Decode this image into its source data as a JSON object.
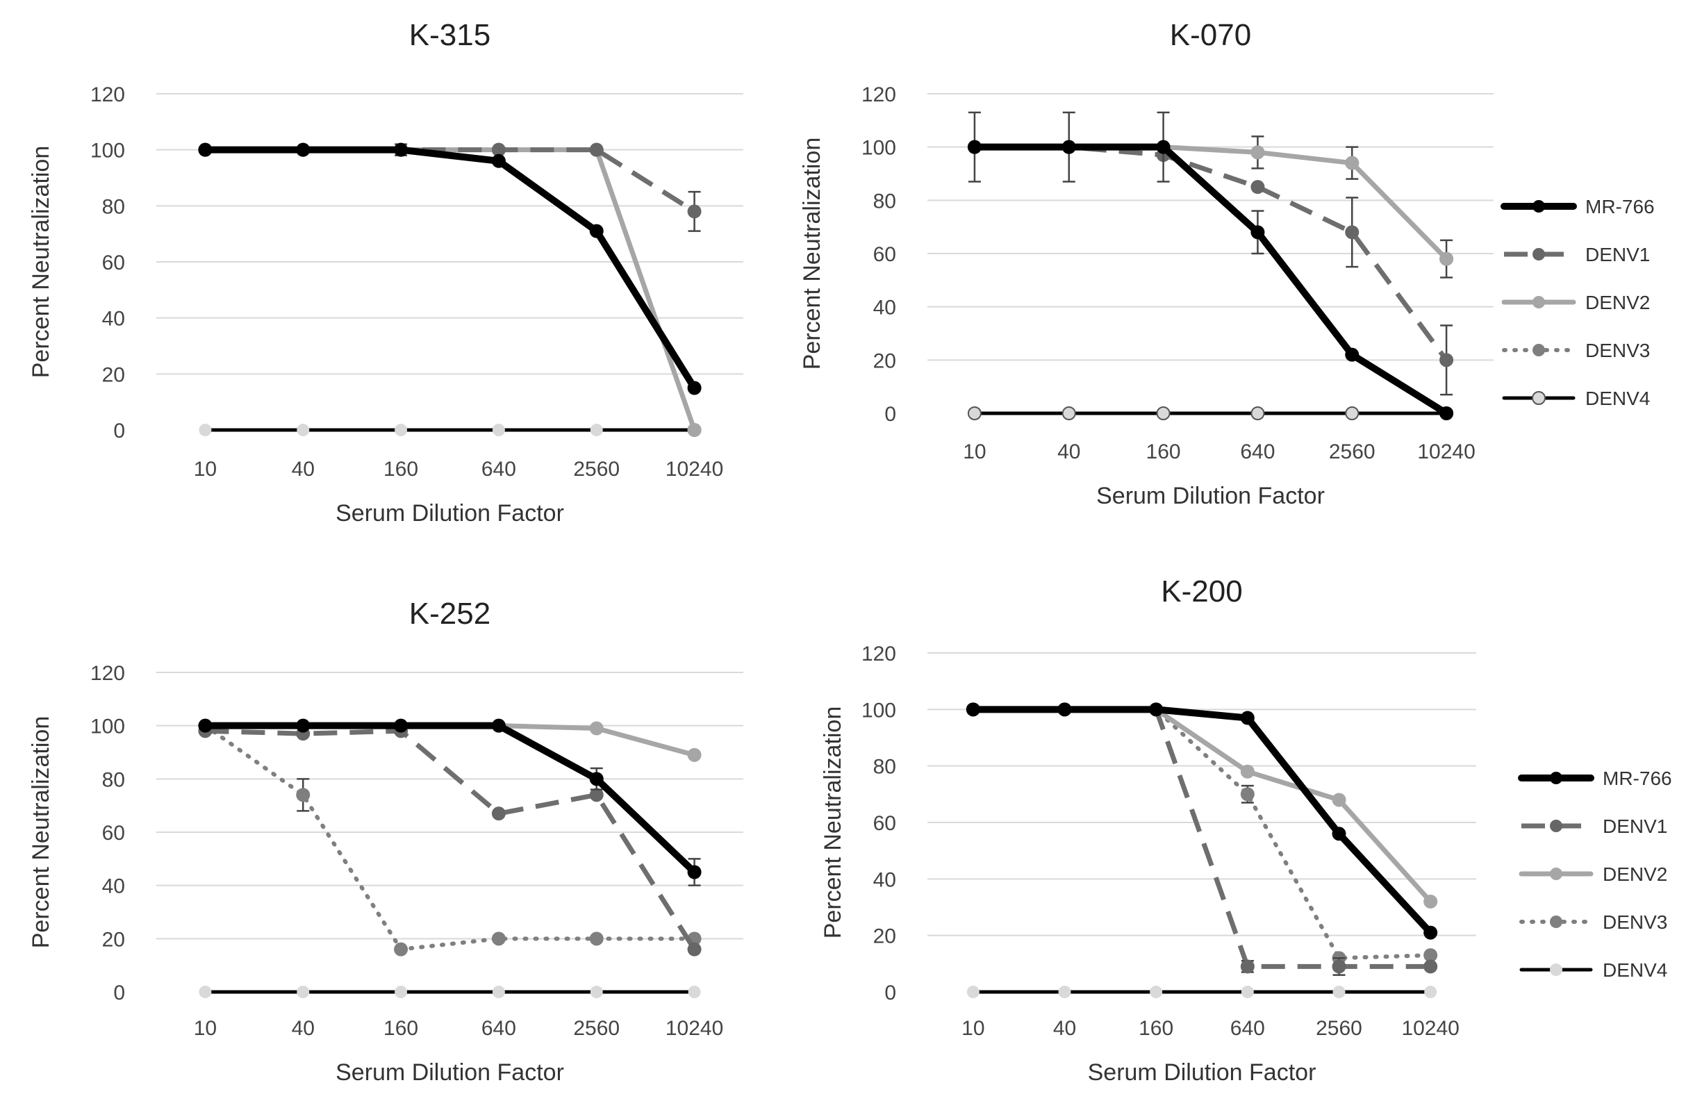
{
  "chart_data": [
    {
      "type": "line",
      "title": "K-315",
      "xlabel": "Serum  Dilution Factor",
      "ylabel": "Percent Neutralization",
      "categories": [
        "10",
        "40",
        "160",
        "640",
        "2560",
        "10240"
      ],
      "ylim": [
        0,
        120
      ],
      "yticks": [
        0,
        20,
        40,
        60,
        80,
        100,
        120
      ],
      "grid": true,
      "legend": "none",
      "series": [
        {
          "name": "MR-766",
          "values": [
            100,
            100,
            100,
            96,
            71,
            15
          ],
          "color": "#000000",
          "style": "solid-thick",
          "marker": "#000000"
        },
        {
          "name": "DENV1",
          "values": [
            100,
            100,
            100,
            100,
            100,
            78
          ],
          "color": "#6e6e6e",
          "style": "dashed",
          "marker": "#666666",
          "errors": [
            0,
            0,
            2,
            0,
            0,
            7
          ]
        },
        {
          "name": "DENV2",
          "values": [
            100,
            100,
            100,
            100,
            100,
            0
          ],
          "color": "#a6a6a6",
          "style": "solid",
          "marker": "#a6a6a6"
        },
        {
          "name": "DENV3",
          "values": [
            100,
            100,
            100,
            100,
            100,
            0
          ],
          "color": "#7f7f7f",
          "style": "dotted",
          "marker": "#7f7f7f"
        },
        {
          "name": "DENV4",
          "values": [
            0,
            0,
            0,
            0,
            0,
            0
          ],
          "color": "#000000",
          "style": "solid",
          "marker": "#d9d9d9"
        }
      ]
    },
    {
      "type": "line",
      "title": "K-070",
      "xlabel": "Serum Dilution Factor",
      "ylabel": "Percent Neutralization",
      "categories": [
        "10",
        "40",
        "160",
        "640",
        "2560",
        "10240"
      ],
      "ylim": [
        0,
        120
      ],
      "yticks": [
        0,
        20,
        40,
        60,
        80,
        100,
        120
      ],
      "grid": true,
      "legend": "right",
      "series": [
        {
          "name": "MR-766",
          "values": [
            100,
            100,
            100,
            68,
            22,
            0
          ],
          "color": "#000000",
          "style": "solid-thick",
          "marker": "#000000",
          "errors": [
            13,
            13,
            13,
            8,
            0,
            0
          ]
        },
        {
          "name": "DENV1",
          "values": [
            100,
            100,
            97,
            85,
            68,
            20
          ],
          "color": "#6e6e6e",
          "style": "dashed",
          "marker": "#666666",
          "errors": [
            0,
            0,
            0,
            0,
            13,
            13
          ]
        },
        {
          "name": "DENV2",
          "values": [
            100,
            100,
            100,
            98,
            94,
            58
          ],
          "color": "#a6a6a6",
          "style": "solid",
          "marker": "#a6a6a6",
          "errors": [
            0,
            0,
            0,
            6,
            6,
            7
          ]
        },
        {
          "name": "DENV3",
          "values": [
            100,
            100,
            100,
            98,
            94,
            58
          ],
          "color": "#7f7f7f",
          "style": "dotted",
          "marker": "#7f7f7f"
        },
        {
          "name": "DENV4",
          "values": [
            0,
            0,
            0,
            0,
            0,
            0
          ],
          "color": "#000000",
          "style": "solid",
          "marker": "#d9d9d9"
        }
      ]
    },
    {
      "type": "line",
      "title": "K-252",
      "xlabel": "Serum Dilution Factor",
      "ylabel": "Percent Neutralization",
      "categories": [
        "10",
        "40",
        "160",
        "640",
        "2560",
        "10240"
      ],
      "ylim": [
        0,
        120
      ],
      "yticks": [
        0,
        20,
        40,
        60,
        80,
        100,
        120
      ],
      "grid": true,
      "legend": "none",
      "series": [
        {
          "name": "MR-766",
          "values": [
            100,
            100,
            100,
            100,
            80,
            45
          ],
          "color": "#000000",
          "style": "solid-thick",
          "marker": "#000000",
          "errors": [
            0,
            0,
            0,
            0,
            4,
            5
          ]
        },
        {
          "name": "DENV1",
          "values": [
            98,
            97,
            98,
            67,
            74,
            16
          ],
          "color": "#6e6e6e",
          "style": "dashed",
          "marker": "#666666"
        },
        {
          "name": "DENV2",
          "values": [
            100,
            100,
            100,
            100,
            99,
            89
          ],
          "color": "#a6a6a6",
          "style": "solid",
          "marker": "#a6a6a6"
        },
        {
          "name": "DENV3",
          "values": [
            100,
            74,
            16,
            20,
            20,
            20
          ],
          "color": "#7f7f7f",
          "style": "dotted",
          "marker": "#7f7f7f",
          "errors": [
            0,
            6,
            0,
            0,
            0,
            0
          ]
        },
        {
          "name": "DENV4",
          "values": [
            0,
            0,
            0,
            0,
            0,
            0
          ],
          "color": "#000000",
          "style": "solid",
          "marker": "#d9d9d9"
        }
      ]
    },
    {
      "type": "line",
      "title": "K-200",
      "xlabel": "Serum Dilution Factor",
      "ylabel": "Percent Neutralization",
      "categories": [
        "10",
        "40",
        "160",
        "640",
        "2560",
        "10240"
      ],
      "ylim": [
        0,
        120
      ],
      "yticks": [
        0,
        20,
        40,
        60,
        80,
        100,
        120
      ],
      "grid": true,
      "legend": "right",
      "series": [
        {
          "name": "MR-766",
          "values": [
            100,
            100,
            100,
            97,
            56,
            21
          ],
          "color": "#000000",
          "style": "solid-thick",
          "marker": "#000000"
        },
        {
          "name": "DENV1",
          "values": [
            100,
            100,
            100,
            9,
            9,
            9
          ],
          "color": "#6e6e6e",
          "style": "dashed",
          "marker": "#666666",
          "errors": [
            0,
            0,
            0,
            2,
            3,
            0
          ]
        },
        {
          "name": "DENV2",
          "values": [
            100,
            100,
            100,
            78,
            68,
            32
          ],
          "color": "#a6a6a6",
          "style": "solid",
          "marker": "#a6a6a6"
        },
        {
          "name": "DENV3",
          "values": [
            100,
            100,
            100,
            70,
            12,
            13
          ],
          "color": "#7f7f7f",
          "style": "dotted",
          "marker": "#7f7f7f",
          "errors": [
            0,
            0,
            0,
            3,
            0,
            0
          ]
        },
        {
          "name": "DENV4",
          "values": [
            0,
            0,
            0,
            0,
            0,
            0
          ],
          "color": "#000000",
          "style": "solid",
          "marker": "#d9d9d9"
        }
      ]
    }
  ]
}
